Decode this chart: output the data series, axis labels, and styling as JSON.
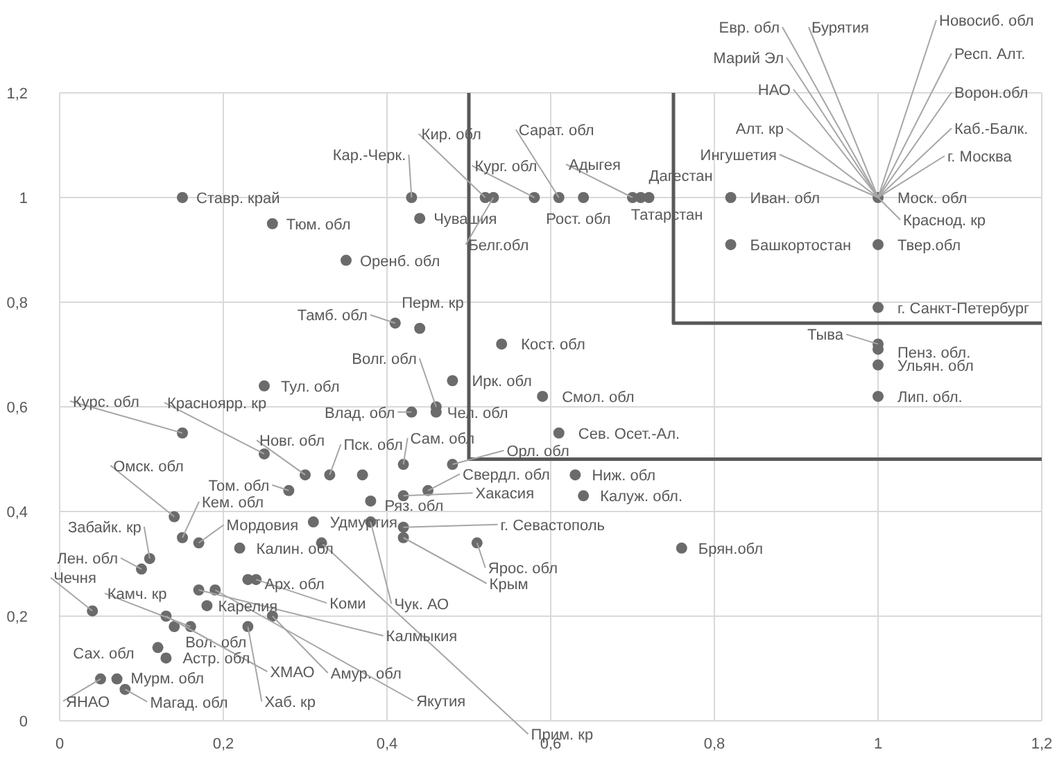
{
  "chart_data": {
    "type": "scatter",
    "xlim": [
      0,
      1.2
    ],
    "ylim": [
      0,
      1.2
    ],
    "xticks": [
      0,
      {
        "value": 0.2,
        "label": "0,2"
      },
      {
        "value": 0.4,
        "label": "0,4"
      },
      {
        "value": 0.6,
        "label": "0,6"
      },
      {
        "value": 0.8,
        "label": "0,8"
      },
      1,
      {
        "value": 1.2,
        "label": "1,2"
      }
    ],
    "yticks": [
      0,
      {
        "value": 0.2,
        "label": "0,2"
      },
      {
        "value": 0.4,
        "label": "0,4"
      },
      {
        "value": 0.6,
        "label": "0,6"
      },
      {
        "value": 0.8,
        "label": "0,8"
      },
      1,
      {
        "value": 1.2,
        "label": "1,2"
      }
    ],
    "grid": true,
    "marker": "circle",
    "series": [
      {
        "color": "#6b6b6b",
        "x": [
          0.15,
          0.43,
          0.44,
          0.26,
          0.35,
          0.41,
          0.44,
          0.52,
          0.53,
          0.58,
          0.61,
          0.64,
          0.7,
          0.72,
          0.71,
          0.82,
          0.82,
          1,
          1,
          1,
          1,
          1,
          1,
          1,
          0.54,
          0.48,
          0.46,
          0.46,
          0.43,
          0.59,
          0.61,
          0.25,
          0.15,
          0.25,
          0.3,
          0.33,
          0.42,
          0.48,
          0.28,
          0.45,
          0.42,
          0.38,
          0.31,
          0.42,
          0.42,
          0.51,
          0.38,
          0.32,
          0.22,
          0.14,
          0.15,
          0.17,
          0.11,
          0.1,
          0.04,
          0.16,
          0.14,
          0.13,
          0.19,
          0.17,
          0.24,
          0.23,
          0.18,
          0.26,
          0.23,
          0.12,
          0.13,
          0.07,
          0.05,
          0.08,
          0.64,
          0.63,
          0.76,
          0.37
        ],
        "values": [
          1,
          1,
          0.96,
          0.95,
          0.88,
          0.76,
          0.75,
          1,
          1,
          1,
          1,
          1,
          1,
          1,
          1,
          1,
          0.91,
          1,
          0.91,
          0.79,
          0.72,
          0.71,
          0.68,
          0.62,
          0.72,
          0.65,
          0.6,
          0.59,
          0.59,
          0.62,
          0.55,
          0.64,
          0.55,
          0.51,
          0.47,
          0.47,
          0.49,
          0.49,
          0.44,
          0.44,
          0.43,
          0.42,
          0.38,
          0.37,
          0.35,
          0.34,
          0.38,
          0.34,
          0.33,
          0.39,
          0.35,
          0.34,
          0.31,
          0.29,
          0.21,
          0.18,
          0.18,
          0.2,
          0.25,
          0.25,
          0.27,
          0.27,
          0.22,
          0.2,
          0.18,
          0.14,
          0.12,
          0.08,
          0.08,
          0.06,
          0.43,
          0.47,
          0.33,
          0.47
        ]
      },
      {
        "type": "line",
        "marker": "none",
        "color": "#595959",
        "x": [
          0.5,
          0.5,
          1.2
        ],
        "values": [
          1.2,
          0.5,
          0.5
        ]
      },
      {
        "type": "line",
        "marker": "none",
        "color": "#595959",
        "x": [
          0.75,
          0.75,
          1.2
        ],
        "values": [
          1.2,
          0.76,
          0.76
        ]
      }
    ],
    "annotations": [
      {
        "text": "Ставр. край",
        "x": 0.15,
        "y": 1
      },
      {
        "text": "Кар.-Черк.",
        "x": 0.43,
        "y": 1
      },
      {
        "text": "Чувашия",
        "x": 0.44,
        "y": 0.96
      },
      {
        "text": "Тюм. обл",
        "x": 0.26,
        "y": 0.95
      },
      {
        "text": "Оренб. обл",
        "x": 0.35,
        "y": 0.88
      },
      {
        "text": "Тамб. обл",
        "x": 0.41,
        "y": 0.76
      },
      {
        "text": "Перм. кр",
        "x": 0.44,
        "y": 0.75
      },
      {
        "text": "Кир. обл",
        "x": 0.52,
        "y": 1
      },
      {
        "text": "Белг.обл",
        "x": 0.53,
        "y": 1
      },
      {
        "text": "Кург. обл",
        "x": 0.58,
        "y": 1
      },
      {
        "text": "Сарат. обл",
        "x": 0.61,
        "y": 1
      },
      {
        "text": "Рост. обл",
        "x": 0.64,
        "y": 1
      },
      {
        "text": "Адыгея",
        "x": 0.7,
        "y": 1
      },
      {
        "text": "Дагестан",
        "x": 0.72,
        "y": 1
      },
      {
        "text": "Татарстан",
        "x": 0.71,
        "y": 1
      },
      {
        "text": "Иван. обл",
        "x": 0.82,
        "y": 1
      },
      {
        "text": "Башкортостан",
        "x": 0.82,
        "y": 0.91
      },
      {
        "text": "Евр. обл",
        "x": 1,
        "y": 1
      },
      {
        "text": "Бурятия",
        "x": 1,
        "y": 1
      },
      {
        "text": "Новосиб. обл",
        "x": 1,
        "y": 1
      },
      {
        "text": "Марий Эл",
        "x": 1,
        "y": 1
      },
      {
        "text": "Респ. Алт.",
        "x": 1,
        "y": 1
      },
      {
        "text": "НАО",
        "x": 1,
        "y": 1
      },
      {
        "text": "Ворон.обл",
        "x": 1,
        "y": 1
      },
      {
        "text": "Алт. кр",
        "x": 1,
        "y": 1
      },
      {
        "text": "Каб.-Балк.",
        "x": 1,
        "y": 1
      },
      {
        "text": "Ингушетия",
        "x": 1,
        "y": 1
      },
      {
        "text": "г. Москва",
        "x": 1,
        "y": 1
      },
      {
        "text": "Моск. обл",
        "x": 1,
        "y": 1
      },
      {
        "text": "Краснод. кр",
        "x": 1,
        "y": 1
      },
      {
        "text": "Твер.обл",
        "x": 1,
        "y": 0.91
      },
      {
        "text": "г. Санкт-Петербург",
        "x": 1,
        "y": 0.79
      },
      {
        "text": "Тыва",
        "x": 1,
        "y": 0.72
      },
      {
        "text": "Пенз. обл.",
        "x": 1,
        "y": 0.71
      },
      {
        "text": "Ульян. обл",
        "x": 1,
        "y": 0.68
      },
      {
        "text": "Лип. обл.",
        "x": 1,
        "y": 0.62
      },
      {
        "text": "Кост. обл",
        "x": 0.54,
        "y": 0.72
      },
      {
        "text": "Ирк. обл",
        "x": 0.48,
        "y": 0.65
      },
      {
        "text": "Волг. обл",
        "x": 0.46,
        "y": 0.6
      },
      {
        "text": "Чел. обл",
        "x": 0.46,
        "y": 0.59
      },
      {
        "text": "Влад. обл",
        "x": 0.43,
        "y": 0.59
      },
      {
        "text": "Смол. обл",
        "x": 0.59,
        "y": 0.62
      },
      {
        "text": "Сев. Осет.-Ал.",
        "x": 0.61,
        "y": 0.55
      },
      {
        "text": "Тул. обл",
        "x": 0.25,
        "y": 0.64
      },
      {
        "text": "Курс. обл",
        "x": 0.15,
        "y": 0.55
      },
      {
        "text": "Красноярр. кр",
        "x": 0.25,
        "y": 0.51
      },
      {
        "text": "Новг. обл",
        "x": 0.3,
        "y": 0.47
      },
      {
        "text": "Пск. обл",
        "x": 0.33,
        "y": 0.47
      },
      {
        "text": "Сам. обл",
        "x": 0.42,
        "y": 0.49
      },
      {
        "text": "Орл. обл",
        "x": 0.48,
        "y": 0.49
      },
      {
        "text": "Том. обл",
        "x": 0.28,
        "y": 0.44
      },
      {
        "text": "Свердл. обл",
        "x": 0.45,
        "y": 0.44
      },
      {
        "text": "Хакасия",
        "x": 0.42,
        "y": 0.43
      },
      {
        "text": "Ряз. обл",
        "x": 0.38,
        "y": 0.42
      },
      {
        "text": "Удмуртия",
        "x": 0.31,
        "y": 0.38
      },
      {
        "text": "г. Севастополь",
        "x": 0.42,
        "y": 0.37
      },
      {
        "text": "Крым",
        "x": 0.42,
        "y": 0.35
      },
      {
        "text": "Ярос. обл",
        "x": 0.51,
        "y": 0.34
      },
      {
        "text": "Чук. АО",
        "x": 0.38,
        "y": 0.38
      },
      {
        "text": "Прим. кр",
        "x": 0.32,
        "y": 0.34
      },
      {
        "text": "Калин. обл",
        "x": 0.22,
        "y": 0.33
      },
      {
        "text": "Омск. обл",
        "x": 0.14,
        "y": 0.39
      },
      {
        "text": "Кем. обл",
        "x": 0.15,
        "y": 0.35
      },
      {
        "text": "Мордовия",
        "x": 0.17,
        "y": 0.34
      },
      {
        "text": "Забайк. кр",
        "x": 0.11,
        "y": 0.31
      },
      {
        "text": "Лен. обл",
        "x": 0.1,
        "y": 0.29
      },
      {
        "text": "Чечня",
        "x": 0.04,
        "y": 0.21
      },
      {
        "text": "Камч. кр",
        "x": 0.16,
        "y": 0.18
      },
      {
        "text": "Вол. обл",
        "x": 0.14,
        "y": 0.18
      },
      {
        "text": "ХМАО",
        "x": 0.13,
        "y": 0.2
      },
      {
        "text": "Якутия",
        "x": 0.19,
        "y": 0.25
      },
      {
        "text": "Калмыкия",
        "x": 0.17,
        "y": 0.25
      },
      {
        "text": "Коми",
        "x": 0.24,
        "y": 0.27
      },
      {
        "text": "Арх. обл",
        "x": 0.23,
        "y": 0.27
      },
      {
        "text": "Карелия",
        "x": 0.18,
        "y": 0.22
      },
      {
        "text": "Амур. обл",
        "x": 0.26,
        "y": 0.2
      },
      {
        "text": "Хаб. кр",
        "x": 0.23,
        "y": 0.18
      },
      {
        "text": "Сах. обл",
        "x": 0.12,
        "y": 0.14
      },
      {
        "text": "Астр. обл",
        "x": 0.13,
        "y": 0.12
      },
      {
        "text": "Мурм. обл",
        "x": 0.07,
        "y": 0.08
      },
      {
        "text": "ЯНАО",
        "x": 0.05,
        "y": 0.08
      },
      {
        "text": "Магад. обл",
        "x": 0.08,
        "y": 0.06
      },
      {
        "text": "Калуж. обл.",
        "x": 0.64,
        "y": 0.43
      },
      {
        "text": "Ниж. обл",
        "x": 0.63,
        "y": 0.47
      },
      {
        "text": "Брян.обл",
        "x": 0.76,
        "y": 0.33
      }
    ]
  }
}
